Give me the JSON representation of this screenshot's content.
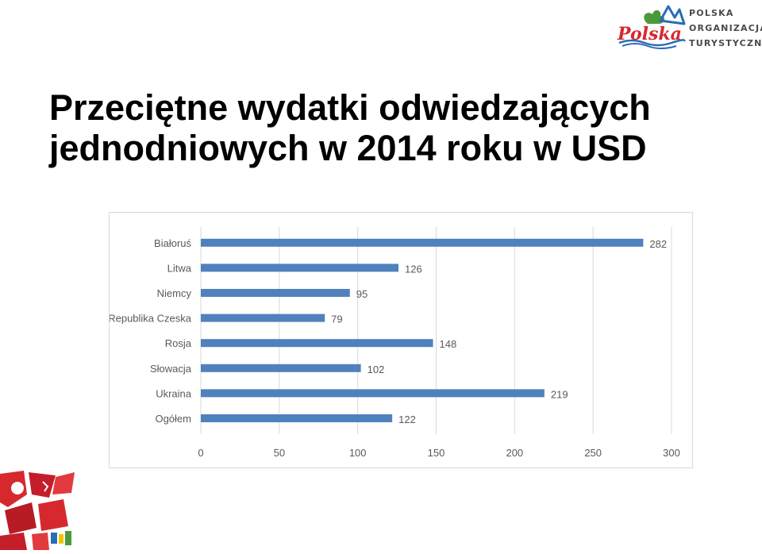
{
  "header": {
    "title_line1": "Przeciętne wydatki odwiedzających",
    "title_line2": "jednodniowych w 2014 roku w USD"
  },
  "logo": {
    "org_line1": "POLSKA",
    "org_line2": "ORGANIZACJA",
    "org_line3": "TURYSTYCZNA"
  },
  "colors": {
    "bar": "#4f81bd",
    "grid": "#d9d9d9",
    "text": "#595959",
    "logo_red": "#d7282f",
    "logo_green": "#4a9a3a",
    "logo_blue": "#2a6cb5"
  },
  "chart_data": {
    "type": "bar",
    "orientation": "horizontal",
    "categories": [
      "Białoruś",
      "Litwa",
      "Niemcy",
      "Republika Czeska",
      "Rosja",
      "Słowacja",
      "Ukraina",
      "Ogółem"
    ],
    "values": [
      282,
      126,
      95,
      79,
      148,
      102,
      219,
      122
    ],
    "xlim": [
      0,
      300
    ],
    "xticks": [
      0,
      50,
      100,
      150,
      200,
      250,
      300
    ],
    "grid": true,
    "data_labels": true,
    "legend": "none"
  }
}
